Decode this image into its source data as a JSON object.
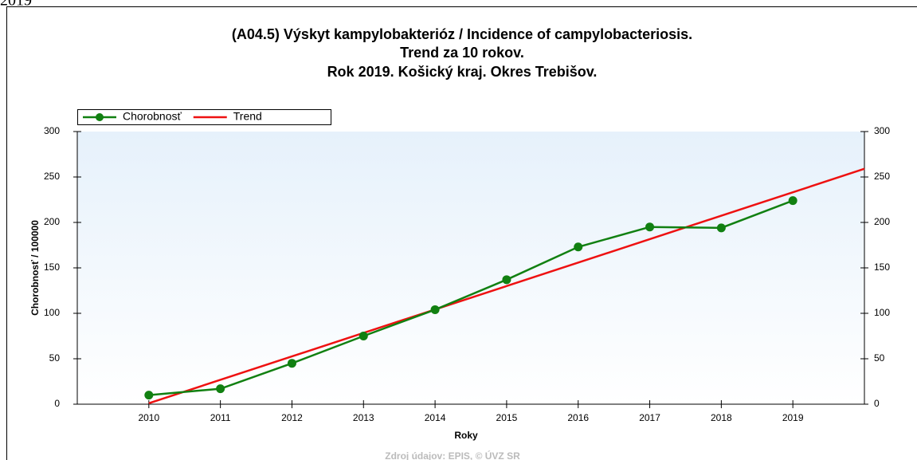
{
  "corner_label": "2019",
  "chart_data": {
    "type": "line",
    "title": [
      "(A04.5) Výskyt kampylobakterióz / Incidence of campylobacteriosis.",
      "Trend za 10 rokov.",
      "Rok 2019. Košický kraj. Okres Trebišov."
    ],
    "xlabel": "Roky",
    "ylabel": "Chorobnosť / 100000",
    "source": "Zdroj údajov: EPIS, © ÚVZ SR",
    "xlim": [
      2009,
      2020
    ],
    "xticks": [
      2010,
      2011,
      2012,
      2013,
      2014,
      2015,
      2016,
      2017,
      2018,
      2019
    ],
    "ylim": [
      0,
      300
    ],
    "yticks": [
      0,
      50,
      100,
      150,
      200,
      250,
      300
    ],
    "y2lim": [
      0,
      300
    ],
    "y2ticks": [
      0,
      50,
      100,
      150,
      200,
      250,
      300
    ],
    "legend": "top-left",
    "series": [
      {
        "name": "Chorobnosť",
        "color": "#118011",
        "marker": "circle",
        "x": [
          2010,
          2011,
          2012,
          2013,
          2014,
          2015,
          2016,
          2017,
          2018,
          2019
        ],
        "values": [
          10,
          17,
          45,
          75,
          104,
          137,
          173,
          195,
          194,
          224
        ]
      },
      {
        "name": "Trend",
        "color": "#ee1111",
        "marker": "none",
        "x": [
          2010,
          2020
        ],
        "values": [
          1,
          259
        ]
      }
    ]
  }
}
